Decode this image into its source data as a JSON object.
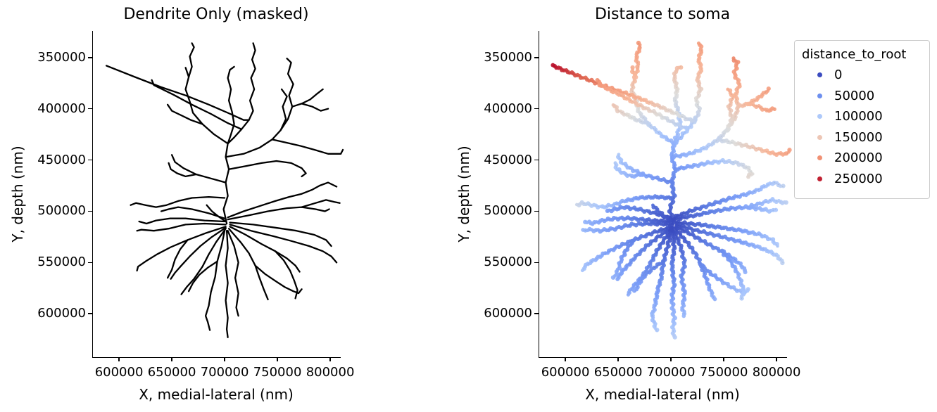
{
  "figure": {
    "background": "#ffffff",
    "panels": [
      {
        "title": "Dendrite Only (masked)",
        "xlabel": "X, medial-lateral (nm)",
        "ylabel": "Y, depth (nm)",
        "style": "black-skeleton"
      },
      {
        "title": "Distance to soma",
        "xlabel": "X, medial-lateral (nm)",
        "ylabel": "Y, depth (nm)",
        "style": "colored-scatter",
        "legend": {
          "title": "distance_to_root",
          "values": [
            0,
            50000,
            100000,
            150000,
            200000,
            250000
          ]
        }
      }
    ]
  },
  "chart_data": {
    "type": "scatter",
    "xlabel": "X, medial-lateral (nm)",
    "ylabel": "Y, depth (nm)",
    "x_ticks_nm": [
      600000,
      650000,
      700000,
      750000,
      800000
    ],
    "y_ticks_nm": [
      350000,
      400000,
      450000,
      500000,
      550000,
      600000
    ],
    "xlim_nm": [
      575300,
      810000
    ],
    "ylim_nm": [
      324100,
      642400
    ],
    "y_axis_inverted": true,
    "grid": false,
    "color_field": "distance_to_root",
    "color_map": "coolwarm",
    "color_norm_max_nm": 260000,
    "line_color_left_panel": "#000000",
    "soma_knm": [
      701,
      512
    ],
    "branches": [
      {
        "d0_nm": 0,
        "pts_knm": [
          [
            702,
            512
          ],
          [
            699,
            498
          ],
          [
            703,
            485
          ],
          [
            701,
            472
          ],
          [
            704,
            459
          ],
          [
            701,
            447
          ],
          [
            703,
            434
          ]
        ]
      },
      {
        "d0_nm": 80000,
        "pts_knm": [
          [
            703,
            434
          ],
          [
            706,
            425
          ],
          [
            709,
            415
          ],
          [
            707,
            403
          ],
          [
            704,
            392
          ],
          [
            706,
            381
          ],
          [
            703,
            370
          ],
          [
            705,
            362
          ],
          [
            709,
            359
          ]
        ]
      },
      {
        "d0_nm": 80000,
        "pts_knm": [
          [
            703,
            434
          ],
          [
            690,
            425
          ],
          [
            679,
            415
          ],
          [
            670,
            404
          ],
          [
            667,
            393
          ],
          [
            663,
            381
          ],
          [
            666,
            369
          ],
          [
            663,
            360
          ]
        ]
      },
      {
        "d0_nm": 111000,
        "pts_knm": [
          [
            679,
            415
          ],
          [
            668,
            411
          ],
          [
            658,
            406
          ],
          [
            650,
            402
          ],
          [
            646,
            396
          ]
        ]
      },
      {
        "d0_nm": 161000,
        "pts_knm": [
          [
            666,
            369
          ],
          [
            669,
            359
          ],
          [
            667,
            349
          ],
          [
            671,
            340
          ],
          [
            669,
            336
          ]
        ]
      },
      {
        "d0_nm": 80000,
        "pts_knm": [
          [
            703,
            434
          ],
          [
            709,
            428
          ],
          [
            716,
            420
          ],
          [
            723,
            411
          ],
          [
            727,
            402
          ],
          [
            724,
            392
          ],
          [
            728,
            381
          ],
          [
            725,
            370
          ],
          [
            729,
            361
          ],
          [
            726,
            352
          ],
          [
            729,
            343
          ],
          [
            727,
            336
          ]
        ]
      },
      {
        "d0_nm": 111000,
        "pts_knm": [
          [
            723,
            411
          ],
          [
            718,
            411
          ],
          [
            703,
            404
          ],
          [
            685,
            396
          ],
          [
            663,
            387
          ],
          [
            640,
            379
          ],
          [
            615,
            369
          ],
          [
            588,
            358
          ]
        ]
      },
      {
        "d0_nm": 100000,
        "pts_knm": [
          [
            716,
            420
          ],
          [
            703,
            414
          ],
          [
            687,
            405
          ],
          [
            669,
            396
          ],
          [
            651,
            386
          ],
          [
            633,
            377
          ],
          [
            631,
            372
          ]
        ]
      },
      {
        "d0_nm": 67000,
        "pts_knm": [
          [
            701,
            447
          ],
          [
            718,
            444
          ],
          [
            733,
            438
          ],
          [
            745,
            430
          ],
          [
            753,
            421
          ],
          [
            758,
            410
          ],
          [
            755,
            398
          ],
          [
            759,
            388
          ],
          [
            754,
            381
          ]
        ]
      },
      {
        "d0_nm": 127000,
        "pts_knm": [
          [
            753,
            421
          ],
          [
            760,
            410
          ],
          [
            764,
            398
          ],
          [
            761,
            387
          ],
          [
            765,
            376
          ],
          [
            760,
            366
          ],
          [
            763,
            355
          ],
          [
            759,
            351
          ]
        ]
      },
      {
        "d0_nm": 153000,
        "pts_knm": [
          [
            764,
            398
          ],
          [
            773,
            395
          ],
          [
            781,
            391
          ],
          [
            788,
            385
          ],
          [
            793,
            381
          ]
        ]
      },
      {
        "d0_nm": 163000,
        "pts_knm": [
          [
            773,
            395
          ],
          [
            783,
            398
          ],
          [
            791,
            402
          ],
          [
            798,
            400
          ]
        ]
      },
      {
        "d0_nm": 115000,
        "pts_knm": [
          [
            745,
            430
          ],
          [
            758,
            433
          ],
          [
            771,
            436
          ],
          [
            785,
            440
          ],
          [
            798,
            444
          ],
          [
            810,
            444
          ],
          [
            812,
            440
          ]
        ]
      },
      {
        "d0_nm": 54000,
        "pts_knm": [
          [
            704,
            459
          ],
          [
            720,
            456
          ],
          [
            735,
            453
          ],
          [
            749,
            451
          ],
          [
            763,
            453
          ],
          [
            773,
            458
          ],
          [
            777,
            463
          ],
          [
            773,
            466
          ]
        ]
      },
      {
        "d0_nm": 40000,
        "pts_knm": [
          [
            701,
            472
          ],
          [
            687,
            468
          ],
          [
            673,
            464
          ],
          [
            661,
            458
          ],
          [
            653,
            452
          ],
          [
            650,
            445
          ]
        ]
      },
      {
        "d0_nm": 69000,
        "pts_knm": [
          [
            673,
            464
          ],
          [
            663,
            466
          ],
          [
            655,
            463
          ],
          [
            649,
            459
          ],
          [
            647,
            453
          ]
        ]
      },
      {
        "d0_nm": 27000,
        "pts_knm": [
          [
            700,
            487
          ],
          [
            685,
            486
          ],
          [
            669,
            487
          ],
          [
            656,
            490
          ],
          [
            645,
            494
          ],
          [
            635,
            496
          ],
          [
            625,
            494
          ],
          [
            616,
            492
          ],
          [
            611,
            494
          ]
        ]
      },
      {
        "d0_nm": 0,
        "pts_knm": [
          [
            701,
            513
          ],
          [
            681,
            512
          ],
          [
            663,
            513
          ],
          [
            647,
            517
          ],
          [
            633,
            519
          ],
          [
            621,
            518
          ],
          [
            617,
            519
          ]
        ]
      },
      {
        "d0_nm": 0,
        "pts_knm": [
          [
            701,
            515
          ],
          [
            683,
            521
          ],
          [
            665,
            528
          ],
          [
            649,
            535
          ],
          [
            636,
            542
          ],
          [
            625,
            549
          ],
          [
            618,
            554
          ],
          [
            617,
            558
          ]
        ]
      },
      {
        "d0_nm": 0,
        "pts_knm": [
          [
            701,
            516
          ],
          [
            688,
            525
          ],
          [
            677,
            534
          ],
          [
            667,
            544
          ],
          [
            659,
            553
          ],
          [
            653,
            560
          ],
          [
            649,
            566
          ]
        ]
      },
      {
        "d0_nm": 0,
        "pts_knm": [
          [
            701,
            517
          ],
          [
            692,
            530
          ],
          [
            685,
            542
          ],
          [
            679,
            554
          ],
          [
            671,
            566
          ],
          [
            664,
            574
          ],
          [
            659,
            581
          ]
        ]
      },
      {
        "d0_nm": 0,
        "pts_knm": [
          [
            700,
            519
          ],
          [
            697,
            534
          ],
          [
            693,
            549
          ],
          [
            691,
            564
          ],
          [
            687,
            579
          ],
          [
            685,
            592
          ],
          [
            682,
            602
          ],
          [
            684,
            608
          ],
          [
            686,
            616
          ]
        ]
      },
      {
        "d0_nm": 0,
        "pts_knm": [
          [
            702,
            519
          ],
          [
            703,
            536
          ],
          [
            701,
            553
          ],
          [
            703,
            570
          ],
          [
            701,
            587
          ],
          [
            703,
            604
          ],
          [
            702,
            615
          ],
          [
            703,
            623
          ]
        ]
      },
      {
        "d0_nm": 0,
        "pts_knm": [
          [
            703,
            519
          ],
          [
            709,
            534
          ],
          [
            713,
            550
          ],
          [
            710,
            565
          ],
          [
            713,
            580
          ],
          [
            711,
            594
          ],
          [
            713,
            602
          ]
        ]
      },
      {
        "d0_nm": 0,
        "pts_knm": [
          [
            704,
            517
          ],
          [
            715,
            530
          ],
          [
            723,
            541
          ],
          [
            729,
            553
          ],
          [
            733,
            565
          ],
          [
            737,
            576
          ],
          [
            741,
            586
          ]
        ]
      },
      {
        "d0_nm": 44000,
        "pts_knm": [
          [
            729,
            553
          ],
          [
            738,
            561
          ],
          [
            748,
            568
          ],
          [
            757,
            574
          ],
          [
            765,
            578
          ],
          [
            770,
            580
          ],
          [
            773,
            576
          ]
        ]
      },
      {
        "d0_nm": 0,
        "pts_knm": [
          [
            705,
            515
          ],
          [
            720,
            523
          ],
          [
            735,
            532
          ],
          [
            748,
            539
          ],
          [
            759,
            546
          ],
          [
            767,
            553
          ],
          [
            771,
            559
          ]
        ]
      },
      {
        "d0_nm": 0,
        "pts_knm": [
          [
            705,
            513
          ],
          [
            725,
            519
          ],
          [
            745,
            524
          ],
          [
            763,
            529
          ],
          [
            780,
            534
          ],
          [
            793,
            539
          ],
          [
            801,
            544
          ],
          [
            806,
            550
          ]
        ]
      },
      {
        "d0_nm": 0,
        "pts_knm": [
          [
            705,
            511
          ],
          [
            727,
            513
          ],
          [
            748,
            516
          ],
          [
            768,
            519
          ],
          [
            785,
            523
          ],
          [
            796,
            528
          ],
          [
            801,
            534
          ]
        ]
      },
      {
        "d0_nm": 0,
        "pts_knm": [
          [
            703,
            508
          ],
          [
            723,
            504
          ],
          [
            741,
            500
          ],
          [
            759,
            497
          ],
          [
            773,
            496
          ],
          [
            786,
            498
          ],
          [
            795,
            500
          ],
          [
            799,
            498
          ]
        ]
      },
      {
        "d0_nm": 0,
        "pts_knm": [
          [
            700,
            507
          ],
          [
            685,
            502
          ],
          [
            669,
            498
          ],
          [
            656,
            496
          ],
          [
            647,
            498
          ],
          [
            640,
            500
          ]
        ]
      },
      {
        "d0_nm": 0,
        "pts_knm": [
          [
            700,
            510
          ],
          [
            681,
            509
          ],
          [
            663,
            507
          ],
          [
            648,
            507
          ],
          [
            635,
            509
          ],
          [
            626,
            512
          ],
          [
            619,
            510
          ]
        ]
      },
      {
        "d0_nm": 0,
        "pts_knm": [
          [
            703,
            506
          ],
          [
            718,
            500
          ],
          [
            733,
            495
          ],
          [
            748,
            490
          ],
          [
            761,
            486
          ],
          [
            773,
            483
          ],
          [
            783,
            479
          ],
          [
            790,
            475
          ],
          [
            798,
            472
          ],
          [
            806,
            476
          ]
        ]
      },
      {
        "d0_nm": 71000,
        "pts_knm": [
          [
            773,
            496
          ],
          [
            786,
            492
          ],
          [
            796,
            489
          ],
          [
            804,
            491
          ],
          [
            809,
            492
          ]
        ]
      },
      {
        "d0_nm": 0,
        "pts_knm": [
          [
            701,
            510
          ],
          [
            694,
            505
          ],
          [
            688,
            500
          ],
          [
            683,
            494
          ]
        ]
      },
      {
        "d0_nm": 30000,
        "pts_knm": [
          [
            693,
            549
          ],
          [
            684,
            555
          ],
          [
            676,
            562
          ],
          [
            670,
            570
          ],
          [
            666,
            578
          ]
        ]
      },
      {
        "d0_nm": 49000,
        "pts_knm": [
          [
            748,
            539
          ],
          [
            756,
            548
          ],
          [
            762,
            558
          ],
          [
            766,
            568
          ],
          [
            769,
            577
          ],
          [
            767,
            585
          ]
        ]
      },
      {
        "d0_nm": 38000,
        "pts_knm": [
          [
            665,
            528
          ],
          [
            658,
            537
          ],
          [
            653,
            547
          ],
          [
            650,
            557
          ],
          [
            646,
            565
          ]
        ]
      }
    ]
  }
}
